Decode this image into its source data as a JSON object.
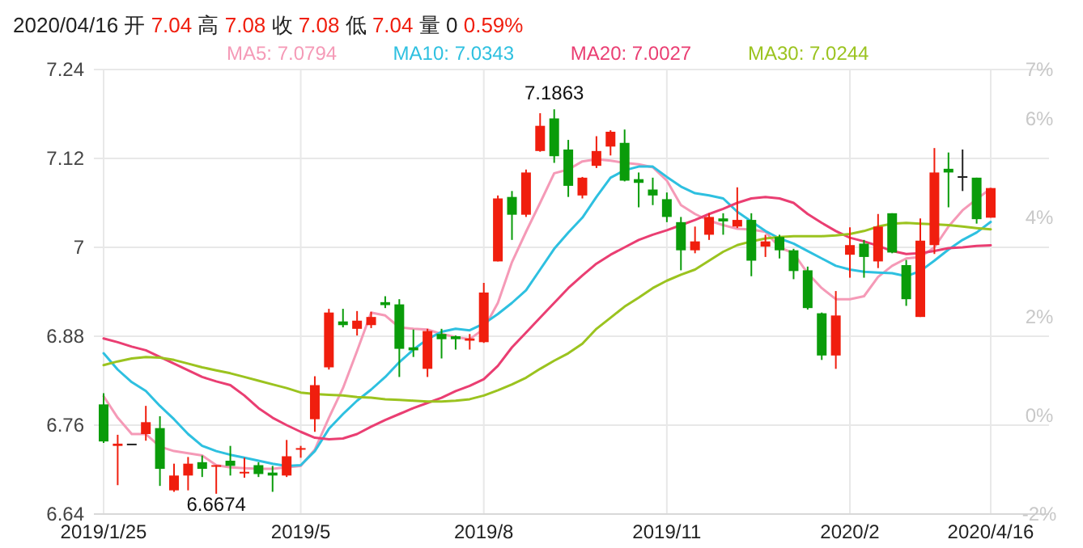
{
  "chart_data": {
    "type": "candlestick",
    "title": "2020/04/16 开 7.04 高 7.08 收 7.08 低 7.04 量 0 0.59%",
    "categories": [
      "2019/1/25",
      null,
      null,
      null,
      null,
      null,
      null,
      null,
      null,
      null,
      null,
      null,
      null,
      null,
      "2019/5",
      null,
      null,
      null,
      null,
      null,
      null,
      null,
      null,
      null,
      null,
      null,
      null,
      "2019/8",
      null,
      null,
      null,
      null,
      null,
      null,
      null,
      null,
      null,
      null,
      null,
      null,
      "2019/11",
      null,
      null,
      null,
      null,
      null,
      null,
      null,
      null,
      null,
      null,
      null,
      null,
      "2020/2",
      null,
      null,
      null,
      null,
      null,
      null,
      null,
      null,
      null,
      "2020/4/16"
    ],
    "ohlc": [
      [
        6.788,
        6.803,
        6.736,
        6.738
      ],
      [
        6.732,
        6.747,
        6.679,
        6.735
      ],
      [
        6.735,
        6.735,
        6.735,
        6.735
      ],
      [
        6.748,
        6.786,
        6.739,
        6.764
      ],
      [
        6.756,
        6.772,
        6.678,
        6.701
      ],
      [
        6.672,
        6.708,
        6.67,
        6.692
      ],
      [
        6.692,
        6.717,
        6.672,
        6.708
      ],
      [
        6.71,
        6.719,
        6.69,
        6.701
      ],
      [
        6.704,
        6.706,
        6.6674,
        6.706
      ],
      [
        6.712,
        6.732,
        6.692,
        6.705
      ],
      [
        6.695,
        6.716,
        6.689,
        6.697
      ],
      [
        6.706,
        6.71,
        6.69,
        6.694
      ],
      [
        6.696,
        6.705,
        6.67,
        6.692
      ],
      [
        6.692,
        6.74,
        6.69,
        6.718
      ],
      [
        6.727,
        6.732,
        6.716,
        6.729
      ],
      [
        6.768,
        6.826,
        6.751,
        6.814
      ],
      [
        6.838,
        6.917,
        6.835,
        6.912
      ],
      [
        6.9,
        6.917,
        6.892,
        6.895
      ],
      [
        6.89,
        6.914,
        6.881,
        6.901
      ],
      [
        6.895,
        6.913,
        6.891,
        6.906
      ],
      [
        6.926,
        6.934,
        6.918,
        6.922
      ],
      [
        6.923,
        6.93,
        6.825,
        6.863
      ],
      [
        6.865,
        6.889,
        6.852,
        6.861
      ],
      [
        6.836,
        6.89,
        6.825,
        6.887
      ],
      [
        6.883,
        6.89,
        6.85,
        6.876
      ],
      [
        6.88,
        6.881,
        6.862,
        6.876
      ],
      [
        6.874,
        6.883,
        6.862,
        6.877
      ],
      [
        6.872,
        6.952,
        6.871,
        6.939
      ],
      [
        6.981,
        7.07,
        6.981,
        7.066
      ],
      [
        7.068,
        7.076,
        7.01,
        7.044
      ],
      [
        7.044,
        7.105,
        7.041,
        7.101
      ],
      [
        7.13,
        7.181,
        7.129,
        7.164
      ],
      [
        7.174,
        7.1863,
        7.114,
        7.123
      ],
      [
        7.132,
        7.145,
        7.068,
        7.083
      ],
      [
        7.07,
        7.095,
        7.066,
        7.094
      ],
      [
        7.11,
        7.15,
        7.107,
        7.13
      ],
      [
        7.136,
        7.158,
        7.124,
        7.156
      ],
      [
        7.141,
        7.159,
        7.089,
        7.09
      ],
      [
        7.092,
        7.101,
        7.054,
        7.087
      ],
      [
        7.078,
        7.094,
        7.057,
        7.07
      ],
      [
        7.065,
        7.074,
        7.034,
        7.041
      ],
      [
        7.034,
        7.041,
        6.969,
        6.996
      ],
      [
        6.996,
        7.028,
        6.992,
        7.008
      ],
      [
        7.017,
        7.046,
        7.01,
        7.041
      ],
      [
        7.039,
        7.046,
        7.017,
        7.035
      ],
      [
        7.028,
        7.081,
        7.026,
        7.037
      ],
      [
        7.037,
        7.046,
        6.961,
        6.982
      ],
      [
        7.001,
        7.017,
        6.987,
        7.008
      ],
      [
        7.014,
        7.017,
        6.985,
        6.996
      ],
      [
        6.996,
        6.998,
        6.957,
        6.968
      ],
      [
        6.969,
        6.974,
        6.916,
        6.918
      ],
      [
        6.911,
        6.912,
        6.848,
        6.854
      ],
      [
        6.854,
        6.941,
        6.836,
        6.908
      ],
      [
        6.99,
        7.027,
        6.959,
        7.003
      ],
      [
        7.005,
        7.01,
        6.959,
        6.987
      ],
      [
        6.981,
        7.045,
        6.972,
        7.028
      ],
      [
        7.046,
        7.046,
        6.992,
        6.993
      ],
      [
        6.976,
        6.983,
        6.921,
        6.93
      ],
      [
        6.906,
        7.039,
        6.906,
        7.009
      ],
      [
        7.003,
        7.134,
        6.991,
        7.101
      ],
      [
        7.106,
        7.128,
        7.054,
        7.101
      ],
      [
        7.096,
        7.132,
        7.076,
        7.096
      ],
      [
        7.094,
        7.094,
        7.032,
        7.038
      ],
      [
        7.04,
        7.08,
        7.04,
        7.08
      ]
    ],
    "colors": [
      "#0a9c0a",
      "#f01e0e",
      "#222222",
      "#f01e0e",
      "#0a9c0a",
      "#f01e0e",
      "#f01e0e",
      "#0a9c0a",
      "#f01e0e",
      "#0a9c0a",
      "#f01e0e",
      "#0a9c0a",
      "#0a9c0a",
      "#f01e0e",
      "#f01e0e",
      "#f01e0e",
      "#f01e0e",
      "#0a9c0a",
      "#f01e0e",
      "#f01e0e",
      "#0a9c0a",
      "#0a9c0a",
      "#0a9c0a",
      "#f01e0e",
      "#0a9c0a",
      "#0a9c0a",
      "#f01e0e",
      "#f01e0e",
      "#f01e0e",
      "#0a9c0a",
      "#f01e0e",
      "#f01e0e",
      "#0a9c0a",
      "#0a9c0a",
      "#f01e0e",
      "#f01e0e",
      "#f01e0e",
      "#0a9c0a",
      "#0a9c0a",
      "#0a9c0a",
      "#0a9c0a",
      "#0a9c0a",
      "#f01e0e",
      "#f01e0e",
      "#0a9c0a",
      "#f01e0e",
      "#0a9c0a",
      "#f01e0e",
      "#0a9c0a",
      "#0a9c0a",
      "#0a9c0a",
      "#0a9c0a",
      "#f01e0e",
      "#f01e0e",
      "#0a9c0a",
      "#f01e0e",
      "#0a9c0a",
      "#0a9c0a",
      "#f01e0e",
      "#f01e0e",
      "#0a9c0a",
      "#222222",
      "#0a9c0a",
      "#f01e0e"
    ],
    "series": [
      {
        "type": "line",
        "name": "MA5: 7.0794",
        "color": "#f59ab7",
        "values": [
          6.799,
          6.77,
          6.748,
          6.748,
          6.731,
          6.725,
          6.722,
          6.719,
          6.706,
          6.703,
          6.702,
          6.701,
          6.701,
          6.703,
          6.705,
          6.727,
          6.77,
          6.81,
          6.86,
          6.912,
          6.908,
          6.892,
          6.89,
          6.889,
          6.883,
          6.879,
          6.876,
          6.89,
          6.925,
          6.98,
          7.021,
          7.06,
          7.1,
          7.105,
          7.116,
          7.119,
          7.117,
          7.114,
          7.112,
          7.108,
          7.09,
          7.057,
          7.045,
          7.036,
          7.03,
          7.025,
          7.024,
          7.021,
          7.0,
          6.992,
          6.965,
          6.945,
          6.93,
          6.93,
          6.934,
          6.96,
          6.975,
          6.985,
          6.987,
          7.0,
          7.028,
          7.05,
          7.065,
          7.0794
        ]
      },
      {
        "type": "line",
        "name": "MA10: 7.0343",
        "color": "#2ec0e0",
        "values": [
          6.857,
          6.835,
          6.818,
          6.806,
          6.786,
          6.768,
          6.748,
          6.732,
          6.725,
          6.72,
          6.716,
          6.712,
          6.708,
          6.705,
          6.706,
          6.725,
          6.755,
          6.775,
          6.793,
          6.808,
          6.825,
          6.845,
          6.862,
          6.876,
          6.886,
          6.89,
          6.888,
          6.897,
          6.91,
          6.925,
          6.942,
          6.97,
          6.998,
          7.02,
          7.04,
          7.068,
          7.094,
          7.104,
          7.109,
          7.109,
          7.095,
          7.082,
          7.073,
          7.07,
          7.066,
          7.048,
          7.035,
          7.022,
          7.012,
          7.005,
          6.995,
          6.985,
          6.975,
          6.97,
          6.967,
          6.966,
          6.965,
          6.961,
          6.968,
          6.982,
          6.997,
          7.01,
          7.02,
          7.0343
        ]
      },
      {
        "type": "line",
        "name": "MA20: 7.0027",
        "color": "#ea3e72",
        "values": [
          6.877,
          6.872,
          6.866,
          6.861,
          6.852,
          6.843,
          6.834,
          6.825,
          6.819,
          6.814,
          6.8,
          6.783,
          6.77,
          6.76,
          6.751,
          6.743,
          6.741,
          6.742,
          6.748,
          6.758,
          6.767,
          6.775,
          6.783,
          6.79,
          6.797,
          6.806,
          6.813,
          6.822,
          6.84,
          6.865,
          6.885,
          6.905,
          6.925,
          6.945,
          6.962,
          6.978,
          6.99,
          7.0,
          7.01,
          7.017,
          7.023,
          7.03,
          7.037,
          7.045,
          7.052,
          7.06,
          7.066,
          7.068,
          7.066,
          7.06,
          7.045,
          7.033,
          7.022,
          7.013,
          7.008,
          7.002,
          6.995,
          6.991,
          6.992,
          6.995,
          6.999,
          7.0,
          7.002,
          7.0027
        ]
      },
      {
        "type": "line",
        "name": "MA30: 7.0244",
        "color": "#9bc31f",
        "values": [
          6.841,
          6.846,
          6.85,
          6.852,
          6.851,
          6.848,
          6.843,
          6.838,
          6.834,
          6.83,
          6.825,
          6.82,
          6.815,
          6.81,
          6.804,
          6.802,
          6.801,
          6.8,
          6.798,
          6.797,
          6.795,
          6.794,
          6.793,
          6.792,
          6.792,
          6.793,
          6.795,
          6.8,
          6.807,
          6.815,
          6.824,
          6.836,
          6.847,
          6.857,
          6.87,
          6.89,
          6.905,
          6.92,
          6.932,
          6.945,
          6.955,
          6.963,
          6.97,
          6.982,
          6.994,
          7.003,
          7.008,
          7.012,
          7.014,
          7.015,
          7.015,
          7.015,
          7.016,
          7.018,
          7.022,
          7.028,
          7.032,
          7.033,
          7.032,
          7.031,
          7.03,
          7.028,
          7.026,
          7.0244
        ]
      }
    ],
    "ylim": [
      6.64,
      7.24
    ],
    "yticks": [
      6.64,
      6.76,
      6.88,
      7,
      7.12,
      7.24
    ],
    "y2lim": [
      -2,
      7
    ],
    "y2ticks": [
      {
        "value": -2,
        "label": "-2%"
      },
      {
        "value": 0,
        "label": "0%"
      },
      {
        "value": 2,
        "label": "2%"
      },
      {
        "value": 4,
        "label": "4%"
      },
      {
        "value": 6,
        "label": "6%"
      },
      {
        "value": 7,
        "label": "7%"
      }
    ],
    "annotations": [
      {
        "text": "7.1863",
        "y": 7.1863
      },
      {
        "text": "6.6674",
        "y": 6.6674
      }
    ],
    "grid": true,
    "legend": "top",
    "line_style": "solid",
    "marker": "none"
  }
}
